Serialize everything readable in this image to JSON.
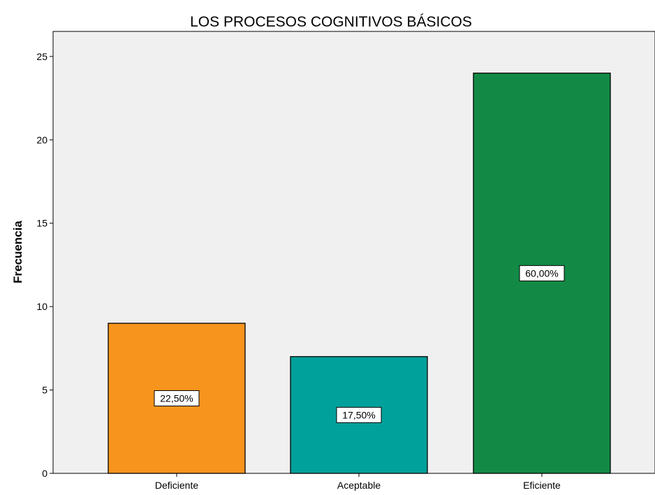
{
  "chart_data": {
    "type": "bar",
    "title": "LOS PROCESOS COGNITIVOS BÁSICOS",
    "xlabel": "",
    "ylabel": "Frecuencia",
    "categories": [
      "Deficiente",
      "Aceptable",
      "Eficiente"
    ],
    "values": [
      9,
      7,
      24
    ],
    "data_labels": [
      "22,50%",
      "17,50%",
      "60,00%"
    ],
    "colors": [
      "#f7941d",
      "#00a19a",
      "#128a46"
    ],
    "ylim": [
      0,
      26.5
    ],
    "yticks": [
      0,
      5,
      10,
      15,
      20,
      25
    ],
    "grid": false,
    "background": "#f0f0f0",
    "legend": "none"
  }
}
